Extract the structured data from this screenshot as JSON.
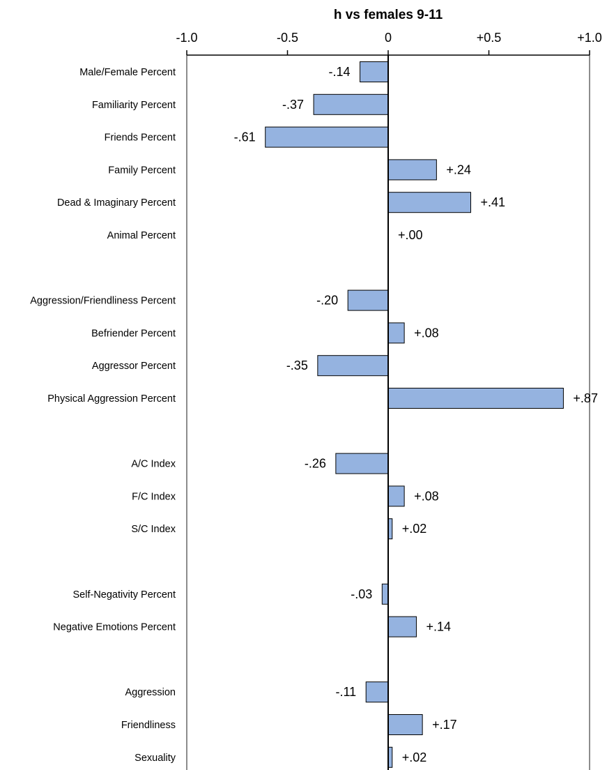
{
  "chart_data": {
    "type": "bar",
    "orientation": "horizontal",
    "title": "h vs females 9-11",
    "xlim": [
      -1.0,
      1.0
    ],
    "xticks": [
      -1.0,
      -0.5,
      0,
      0.5,
      1.0
    ],
    "xtick_labels": [
      "-1.0",
      "-0.5",
      "0",
      "+0.5",
      "+1.0"
    ],
    "xaxis_position": "top",
    "bar_color": "#95b3e0",
    "categories": [
      "Male/Female Percent",
      "Familiarity Percent",
      "Friends Percent",
      "Family Percent",
      "Dead & Imaginary Percent",
      "Animal Percent",
      "",
      "Aggression/Friendliness Percent",
      "Befriender Percent",
      "Aggressor Percent",
      "Physical Aggression Percent",
      "",
      "A/C Index",
      "F/C Index",
      "S/C Index",
      "",
      "Self-Negativity Percent",
      "Negative Emotions Percent",
      "",
      "Aggression",
      "Friendliness",
      "Sexuality"
    ],
    "values": [
      -0.14,
      -0.37,
      -0.61,
      0.24,
      0.41,
      0.0,
      null,
      -0.2,
      0.08,
      -0.35,
      0.87,
      null,
      -0.26,
      0.08,
      0.02,
      null,
      -0.03,
      0.14,
      null,
      -0.11,
      0.17,
      0.02
    ],
    "data_labels": [
      "-.14",
      "-.37",
      "-.61",
      "+.24",
      "+.41",
      "+.00",
      "",
      "-.20",
      "+.08",
      "-.35",
      "+.87",
      "",
      "-.26",
      "+.08",
      "+.02",
      "",
      "-.03",
      "+.14",
      "",
      "-.11",
      "+.17",
      "+.02"
    ]
  }
}
